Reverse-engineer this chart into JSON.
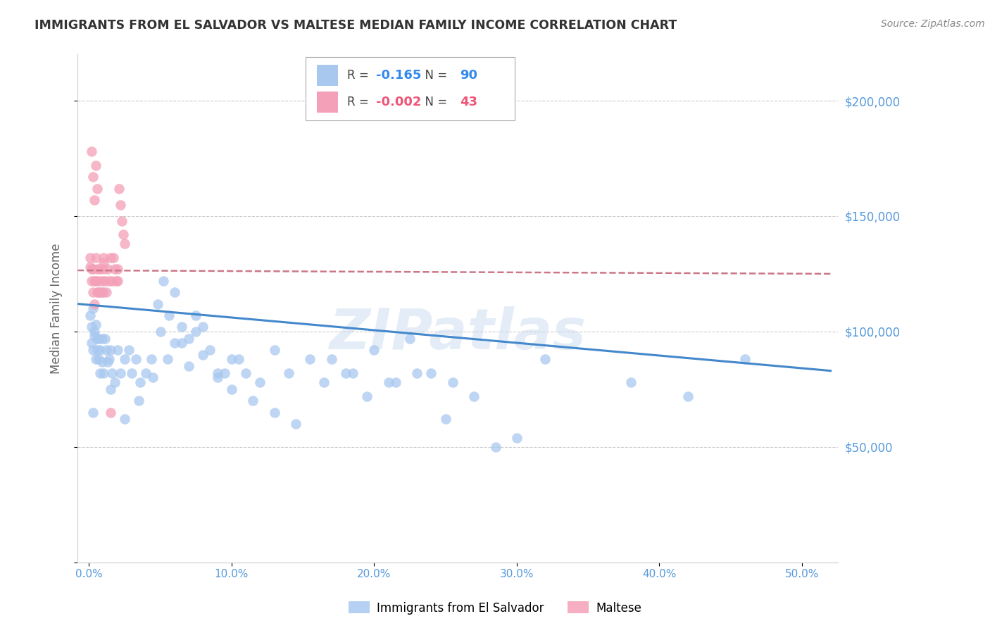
{
  "title": "IMMIGRANTS FROM EL SALVADOR VS MALTESE MEDIAN FAMILY INCOME CORRELATION CHART",
  "source": "Source: ZipAtlas.com",
  "ylabel": "Median Family Income",
  "x_ticks": [
    0.0,
    0.1,
    0.2,
    0.3,
    0.4,
    0.5
  ],
  "x_tick_labels": [
    "0.0%",
    "10.0%",
    "20.0%",
    "30.0%",
    "40.0%",
    "50.0%"
  ],
  "y_ticks": [
    0,
    50000,
    100000,
    150000,
    200000
  ],
  "y_tick_labels": [
    "",
    "$50,000",
    "$100,000",
    "$150,000",
    "$200,000"
  ],
  "xlim": [
    -0.008,
    0.525
  ],
  "ylim": [
    0,
    220000
  ],
  "blue_R": "-0.165",
  "blue_N": "90",
  "pink_R": "-0.002",
  "pink_N": "43",
  "blue_color": "#A8C8F0",
  "pink_color": "#F4A0B8",
  "blue_line_color": "#4488CC",
  "pink_line_color": "#CC7788",
  "grid_color": "#CCCCCC",
  "title_color": "#333333",
  "tick_label_color": "#5599DD",
  "watermark": "ZIPatlas",
  "legend_label_blue": "Immigrants from El Salvador",
  "legend_label_pink": "Maltese",
  "blue_scatter_x": [
    0.001,
    0.002,
    0.002,
    0.003,
    0.003,
    0.004,
    0.004,
    0.005,
    0.005,
    0.006,
    0.006,
    0.007,
    0.007,
    0.008,
    0.008,
    0.009,
    0.009,
    0.01,
    0.01,
    0.011,
    0.012,
    0.013,
    0.014,
    0.015,
    0.016,
    0.018,
    0.02,
    0.022,
    0.025,
    0.028,
    0.03,
    0.033,
    0.036,
    0.04,
    0.044,
    0.048,
    0.052,
    0.056,
    0.06,
    0.065,
    0.07,
    0.075,
    0.08,
    0.09,
    0.1,
    0.11,
    0.12,
    0.13,
    0.14,
    0.155,
    0.165,
    0.18,
    0.195,
    0.21,
    0.225,
    0.24,
    0.255,
    0.27,
    0.285,
    0.3,
    0.17,
    0.185,
    0.2,
    0.215,
    0.23,
    0.05,
    0.06,
    0.07,
    0.08,
    0.09,
    0.1,
    0.115,
    0.13,
    0.145,
    0.025,
    0.035,
    0.045,
    0.055,
    0.065,
    0.075,
    0.085,
    0.095,
    0.105,
    0.32,
    0.38,
    0.42,
    0.46,
    0.003,
    0.015,
    0.25
  ],
  "blue_scatter_y": [
    107000,
    102000,
    95000,
    110000,
    92000,
    100000,
    98000,
    88000,
    103000,
    97000,
    92000,
    88000,
    97000,
    92000,
    82000,
    87000,
    97000,
    82000,
    117000,
    97000,
    92000,
    87000,
    88000,
    92000,
    82000,
    78000,
    92000,
    82000,
    88000,
    92000,
    82000,
    88000,
    78000,
    82000,
    88000,
    112000,
    122000,
    107000,
    117000,
    102000,
    97000,
    107000,
    102000,
    82000,
    88000,
    82000,
    78000,
    92000,
    82000,
    88000,
    78000,
    82000,
    72000,
    78000,
    97000,
    82000,
    78000,
    72000,
    50000,
    54000,
    88000,
    82000,
    92000,
    78000,
    82000,
    100000,
    95000,
    85000,
    90000,
    80000,
    75000,
    70000,
    65000,
    60000,
    62000,
    70000,
    80000,
    88000,
    95000,
    100000,
    92000,
    82000,
    88000,
    88000,
    78000,
    72000,
    88000,
    65000,
    75000,
    62000
  ],
  "pink_scatter_x": [
    0.001,
    0.001,
    0.002,
    0.002,
    0.003,
    0.003,
    0.004,
    0.004,
    0.005,
    0.005,
    0.006,
    0.006,
    0.007,
    0.007,
    0.008,
    0.008,
    0.009,
    0.009,
    0.01,
    0.01,
    0.011,
    0.012,
    0.013,
    0.014,
    0.015,
    0.016,
    0.017,
    0.018,
    0.019,
    0.02,
    0.021,
    0.022,
    0.023,
    0.024,
    0.025,
    0.002,
    0.003,
    0.004,
    0.005,
    0.006,
    0.01,
    0.015,
    0.02
  ],
  "pink_scatter_y": [
    132000,
    128000,
    127000,
    122000,
    117000,
    127000,
    122000,
    112000,
    132000,
    122000,
    117000,
    127000,
    117000,
    122000,
    127000,
    117000,
    122000,
    117000,
    127000,
    132000,
    122000,
    117000,
    127000,
    122000,
    132000,
    122000,
    132000,
    127000,
    122000,
    122000,
    162000,
    155000,
    148000,
    142000,
    138000,
    178000,
    167000,
    157000,
    172000,
    162000,
    130000,
    65000,
    127000
  ],
  "blue_trend_x": [
    -0.008,
    0.52
  ],
  "blue_trend_y": [
    112000,
    83000
  ],
  "pink_trend_x": [
    -0.008,
    0.52
  ],
  "pink_trend_y": [
    126500,
    125000
  ]
}
